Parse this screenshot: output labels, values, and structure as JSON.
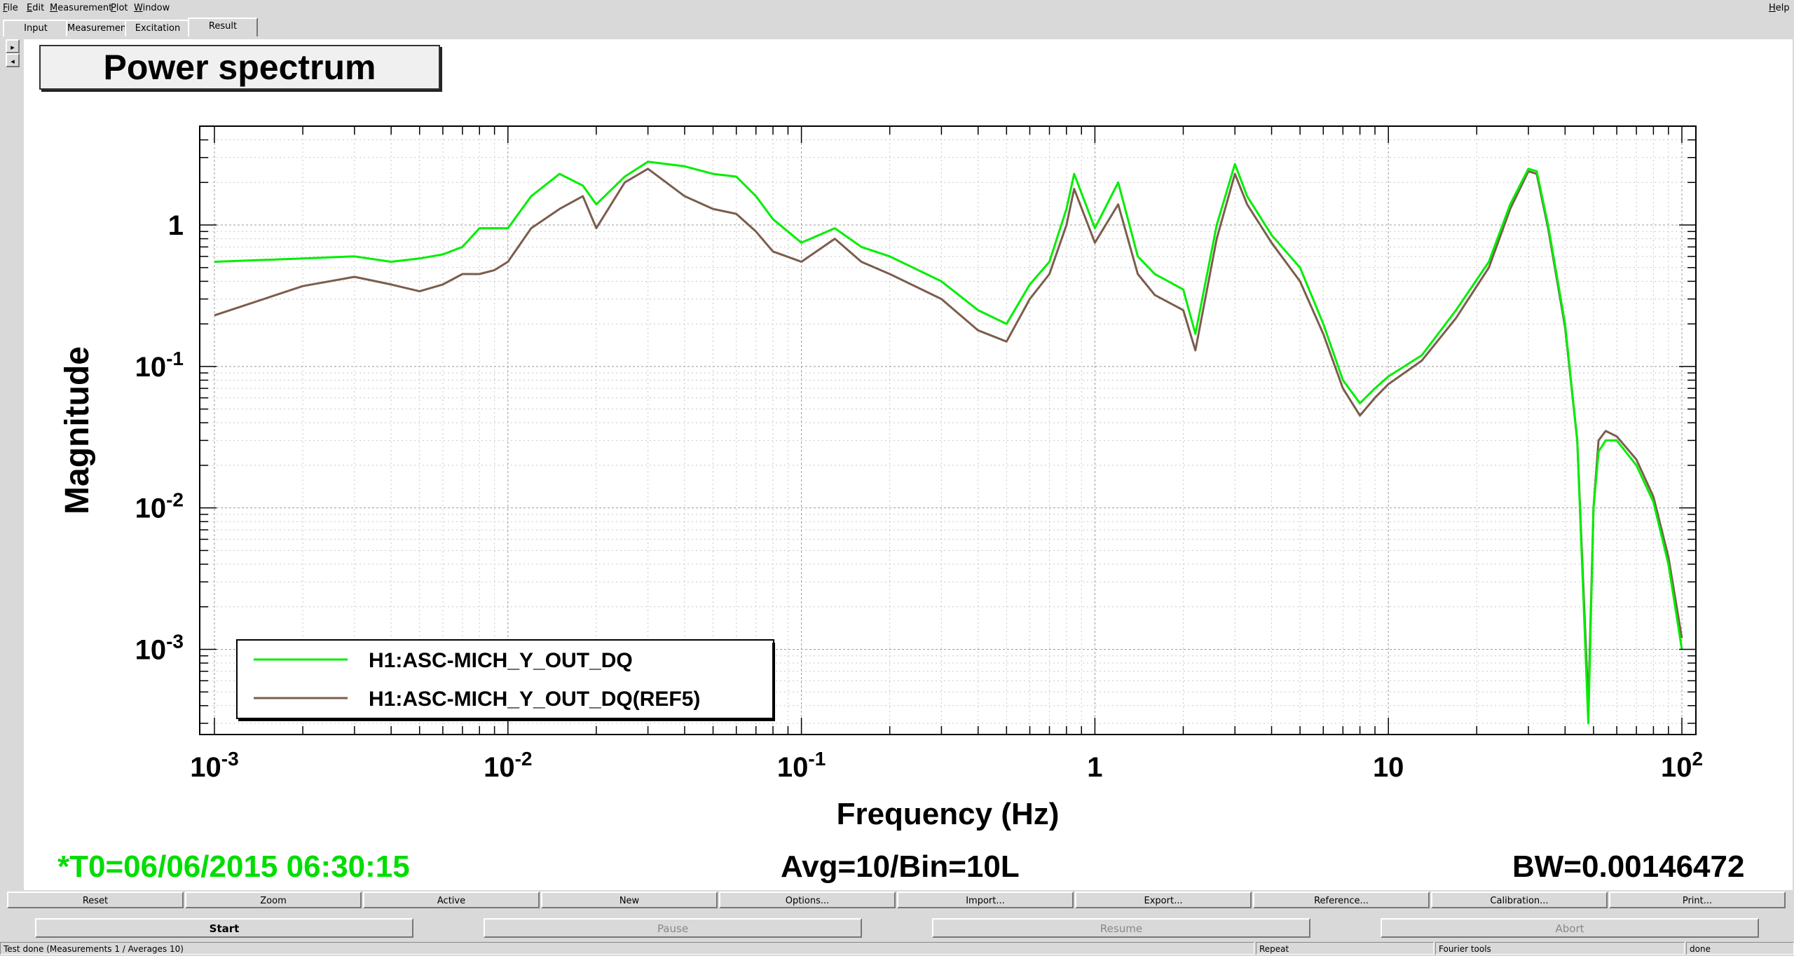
{
  "menu": {
    "file": "File",
    "edit": "Edit",
    "measurement": "Measurement",
    "plot": "Plot",
    "window": "Window",
    "help": "Help"
  },
  "tabs": [
    "Input",
    "Measurement",
    "Excitation",
    "Result"
  ],
  "plot_title": "Power spectrum",
  "footer": {
    "t0": "*T0=06/06/2015 06:30:15",
    "avg": "Avg=10/Bin=10L",
    "bw": "BW=0.00146472"
  },
  "buttons_row1": [
    "Reset",
    "Zoom",
    "Active",
    "New",
    "Options...",
    "Import...",
    "Export...",
    "Reference...",
    "Calibration...",
    "Print..."
  ],
  "buttons_row2": [
    "Start",
    "Pause",
    "Resume",
    "Abort"
  ],
  "status": {
    "left": "Test done (Measurements 1 / Averages 10)",
    "repeat": "Repeat",
    "tool": "Fourier tools",
    "state": "done"
  },
  "colors": {
    "series_live": "#00ee00",
    "series_ref": "#7b5d4d",
    "t0_text": "#00dd00"
  },
  "chart_data": {
    "type": "line",
    "xlabel": "Frequency (Hz)",
    "ylabel": "Magnitude",
    "x_scale": "log",
    "y_scale": "log",
    "xlim": [
      0.001,
      100
    ],
    "ylim": [
      0.00025,
      5
    ],
    "x_ticks": [
      {
        "exp": "-3",
        "label": "10"
      },
      {
        "exp": "-2",
        "label": "10"
      },
      {
        "exp": "-1",
        "label": "10"
      },
      {
        "exp": "",
        "label": "1"
      },
      {
        "exp": "",
        "label": "10"
      },
      {
        "exp": "2",
        "label": "10"
      }
    ],
    "y_ticks": [
      {
        "exp": "-3",
        "label": "10"
      },
      {
        "exp": "-2",
        "label": "10"
      },
      {
        "exp": "-1",
        "label": "10"
      },
      {
        "exp": "",
        "label": "1"
      }
    ],
    "grid": true,
    "legend_position": "bottom-left",
    "series": [
      {
        "name": "H1:ASC-MICH_Y_OUT_DQ",
        "x": [
          0.001,
          0.002,
          0.003,
          0.004,
          0.005,
          0.006,
          0.007,
          0.008,
          0.009,
          0.01,
          0.012,
          0.015,
          0.018,
          0.02,
          0.025,
          0.03,
          0.04,
          0.05,
          0.06,
          0.07,
          0.08,
          0.1,
          0.13,
          0.16,
          0.2,
          0.3,
          0.4,
          0.5,
          0.6,
          0.7,
          0.8,
          0.85,
          1.0,
          1.2,
          1.4,
          1.6,
          2.0,
          2.2,
          2.6,
          3.0,
          3.3,
          4.0,
          5.0,
          6.0,
          7.0,
          8.0,
          9.0,
          10,
          13,
          17,
          22,
          26,
          30,
          32,
          35,
          40,
          44,
          48,
          50,
          52,
          55,
          60,
          70,
          80,
          90,
          100
        ],
        "y": [
          0.55,
          0.58,
          0.6,
          0.55,
          0.58,
          0.62,
          0.7,
          0.95,
          0.95,
          0.95,
          1.6,
          2.3,
          1.9,
          1.4,
          2.2,
          2.8,
          2.6,
          2.3,
          2.2,
          1.6,
          1.1,
          0.75,
          0.95,
          0.7,
          0.6,
          0.4,
          0.25,
          0.2,
          0.38,
          0.55,
          1.3,
          2.3,
          0.95,
          2.0,
          0.6,
          0.45,
          0.35,
          0.17,
          1.0,
          2.7,
          1.6,
          0.85,
          0.5,
          0.2,
          0.08,
          0.055,
          0.07,
          0.085,
          0.12,
          0.25,
          0.55,
          1.4,
          2.5,
          2.4,
          1.0,
          0.2,
          0.03,
          0.0003,
          0.01,
          0.025,
          0.03,
          0.03,
          0.02,
          0.011,
          0.004,
          0.001
        ]
      },
      {
        "name": "H1:ASC-MICH_Y_OUT_DQ(REF5)",
        "x": [
          0.001,
          0.002,
          0.003,
          0.004,
          0.005,
          0.006,
          0.007,
          0.008,
          0.009,
          0.01,
          0.012,
          0.015,
          0.018,
          0.02,
          0.025,
          0.03,
          0.04,
          0.05,
          0.06,
          0.07,
          0.08,
          0.1,
          0.13,
          0.16,
          0.2,
          0.3,
          0.4,
          0.5,
          0.6,
          0.7,
          0.8,
          0.85,
          1.0,
          1.2,
          1.4,
          1.6,
          2.0,
          2.2,
          2.6,
          3.0,
          3.3,
          4.0,
          5.0,
          6.0,
          7.0,
          8.0,
          9.0,
          10,
          13,
          17,
          22,
          26,
          30,
          32,
          35,
          40,
          44,
          48,
          50,
          52,
          55,
          60,
          70,
          80,
          90,
          100
        ],
        "y": [
          0.23,
          0.37,
          0.43,
          0.38,
          0.34,
          0.38,
          0.45,
          0.45,
          0.48,
          0.55,
          0.95,
          1.3,
          1.6,
          0.95,
          2.0,
          2.5,
          1.6,
          1.3,
          1.2,
          0.9,
          0.65,
          0.55,
          0.8,
          0.55,
          0.45,
          0.3,
          0.18,
          0.15,
          0.3,
          0.45,
          1.0,
          1.8,
          0.75,
          1.4,
          0.45,
          0.32,
          0.25,
          0.13,
          0.8,
          2.3,
          1.4,
          0.75,
          0.4,
          0.17,
          0.07,
          0.045,
          0.06,
          0.075,
          0.11,
          0.22,
          0.5,
          1.3,
          2.4,
          2.3,
          0.95,
          0.19,
          0.03,
          0.0004,
          0.01,
          0.03,
          0.035,
          0.032,
          0.022,
          0.012,
          0.0045,
          0.0012
        ]
      }
    ]
  }
}
